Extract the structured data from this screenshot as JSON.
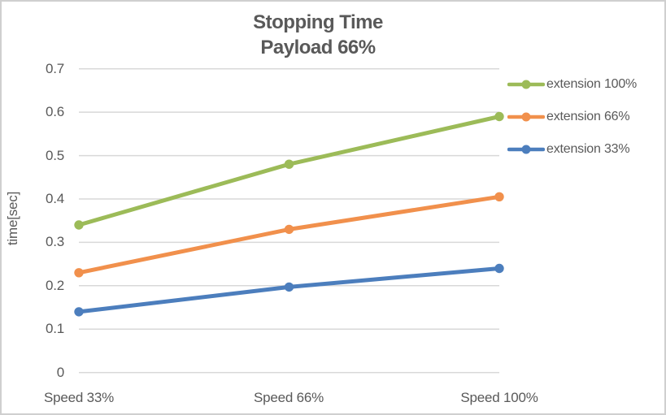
{
  "chart_data": {
    "type": "line",
    "title": "Stopping Time",
    "subtitle": "Payload 66%",
    "ylabel": "time[sec]",
    "xlabel": "",
    "categories": [
      "Speed 33%",
      "Speed 66%",
      "Speed 100%"
    ],
    "series": [
      {
        "name": "extension 100%",
        "color": "#9CBB58",
        "values": [
          0.34,
          0.48,
          0.59
        ]
      },
      {
        "name": "extension 66%",
        "color": "#F1904C",
        "values": [
          0.23,
          0.33,
          0.405
        ]
      },
      {
        "name": "extension 33%",
        "color": "#4C7EBD",
        "values": [
          0.14,
          0.197,
          0.24
        ]
      }
    ],
    "yticks": [
      "0.7",
      "0.6",
      "0.5",
      "0.4",
      "0.3",
      "0.2",
      "0.1",
      "0"
    ],
    "ylim": [
      0,
      0.7
    ],
    "grid": true,
    "legend_position": "right",
    "marker": "circle"
  },
  "style": {
    "text_color": "#595959",
    "gridline_color": "#D8D8D8",
    "background": "#FFFFFF",
    "border_color": "#CFCFCF"
  }
}
